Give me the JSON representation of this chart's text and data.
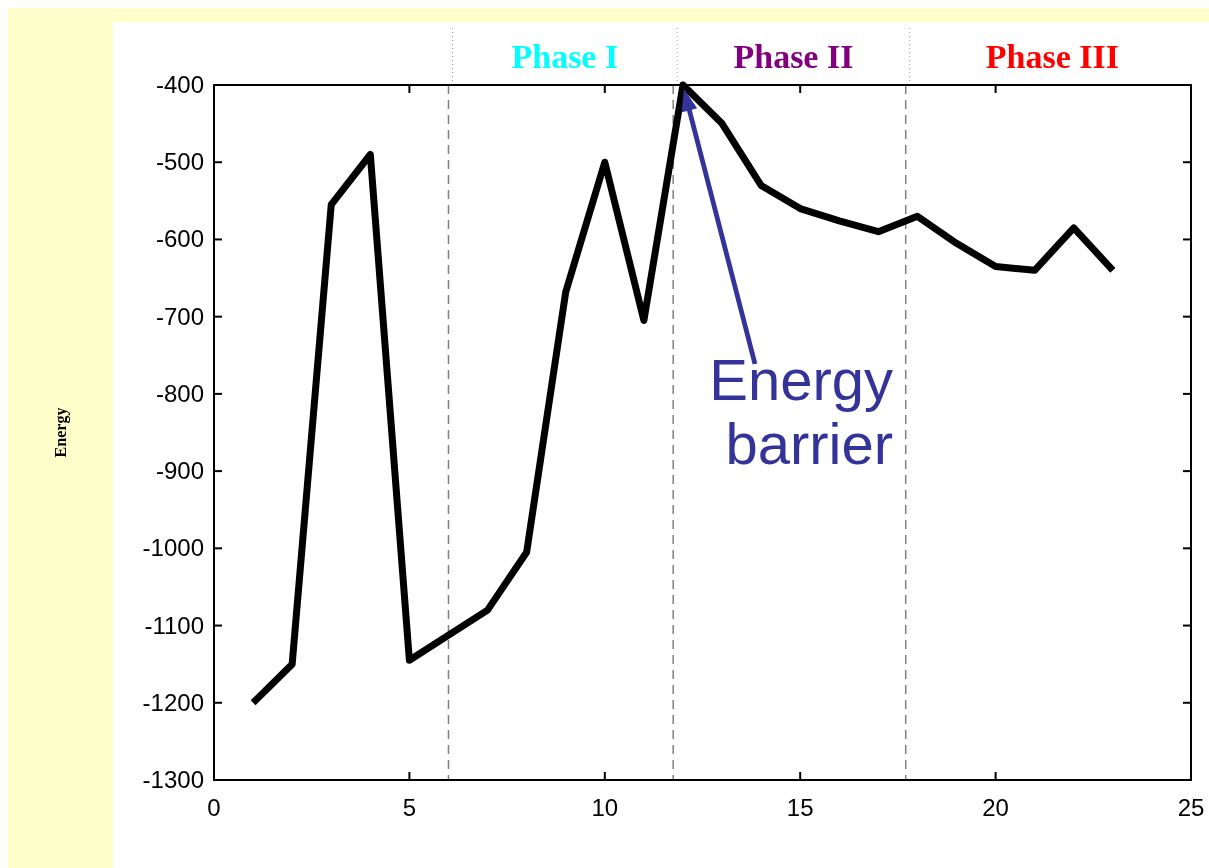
{
  "chart_data": {
    "type": "line",
    "ylabel": "Energy",
    "x": [
      1,
      2,
      3,
      4,
      5,
      7,
      8,
      9,
      10,
      11,
      12,
      13,
      14,
      15,
      16,
      17,
      18,
      19,
      20,
      21,
      22,
      23
    ],
    "series": [
      {
        "color": "#000000",
        "values": [
          -1200,
          -1150,
          -555,
          -490,
          -1145,
          -1080,
          -1005,
          -668,
          -500,
          -705,
          -400,
          -450,
          -530,
          -560,
          -576,
          -590,
          -570,
          -605,
          -635,
          -640,
          -585,
          -640
        ]
      }
    ],
    "xlim": [
      0,
      25
    ],
    "xticks": [
      0,
      5,
      10,
      15,
      20,
      25
    ],
    "ylim": [
      -1300,
      -400
    ],
    "yticks": [
      -1300,
      -1200,
      -1100,
      -1000,
      -900,
      -800,
      -700,
      -600,
      -500,
      -400
    ],
    "grid": false,
    "marker": "none",
    "line_style": "solid",
    "ref_lines": [
      {
        "axis": "x",
        "value": 6,
        "color": "#808080",
        "line_style": "dashed"
      },
      {
        "axis": "x",
        "value": 11.75,
        "color": "#808080",
        "line_style": "dashed"
      },
      {
        "axis": "x",
        "value": 17.7,
        "color": "#808080",
        "line_style": "dashed"
      }
    ],
    "annotations": [
      "Energy\nbarrier",
      "Phase I",
      "Phase II",
      "Phase III"
    ]
  }
}
